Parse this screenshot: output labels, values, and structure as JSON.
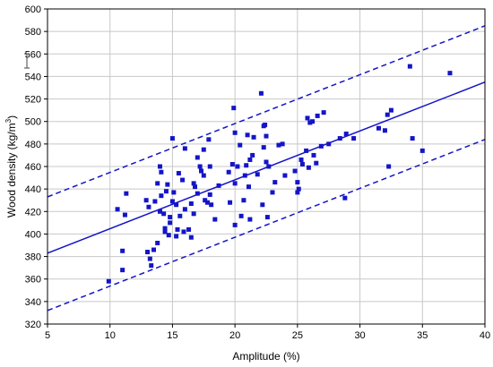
{
  "chart_data": {
    "type": "scatter",
    "xlabel": "Amplitude (%)",
    "ylabel": "Wood density (kg/m",
    "ylabel_sup": "3",
    "ylabel_close": ")",
    "xlim": [
      5,
      40
    ],
    "ylim": [
      320,
      600
    ],
    "xticks": [
      5,
      10,
      15,
      20,
      25,
      30,
      35,
      40
    ],
    "yticks": [
      320,
      340,
      360,
      380,
      400,
      420,
      440,
      460,
      480,
      500,
      520,
      540,
      560,
      580,
      600
    ],
    "grid": true,
    "colors": {
      "points": "#1414c8",
      "lines": "#1414c8",
      "grid": "#c8c8c8"
    },
    "regression_line": {
      "x": [
        5,
        40
      ],
      "y": [
        383,
        535
      ]
    },
    "prediction_upper": {
      "x": [
        5,
        40
      ],
      "y": [
        433,
        585
      ]
    },
    "prediction_lower": {
      "x": [
        5,
        40
      ],
      "y": [
        332,
        484
      ]
    },
    "points": [
      [
        9.9,
        358
      ],
      [
        10.6,
        422
      ],
      [
        11.0,
        385
      ],
      [
        11.0,
        368
      ],
      [
        11.2,
        417
      ],
      [
        11.3,
        436
      ],
      [
        12.9,
        430
      ],
      [
        13.0,
        384
      ],
      [
        13.1,
        424
      ],
      [
        13.2,
        378
      ],
      [
        13.3,
        372
      ],
      [
        13.5,
        386
      ],
      [
        13.6,
        429
      ],
      [
        13.8,
        392
      ],
      [
        13.8,
        445
      ],
      [
        14.0,
        460
      ],
      [
        14.0,
        420
      ],
      [
        14.1,
        434
      ],
      [
        14.1,
        455
      ],
      [
        14.3,
        418
      ],
      [
        14.4,
        405
      ],
      [
        14.4,
        402
      ],
      [
        14.5,
        438
      ],
      [
        14.6,
        444
      ],
      [
        14.7,
        399
      ],
      [
        14.8,
        410
      ],
      [
        14.8,
        415
      ],
      [
        15.0,
        485
      ],
      [
        15.0,
        429
      ],
      [
        15.1,
        437
      ],
      [
        15.3,
        426
      ],
      [
        15.3,
        398
      ],
      [
        15.4,
        404
      ],
      [
        15.5,
        454
      ],
      [
        15.6,
        416
      ],
      [
        15.8,
        448
      ],
      [
        15.9,
        402
      ],
      [
        16.0,
        422
      ],
      [
        16.0,
        476
      ],
      [
        16.3,
        404
      ],
      [
        16.5,
        427
      ],
      [
        16.5,
        397
      ],
      [
        16.7,
        445
      ],
      [
        16.7,
        418
      ],
      [
        16.8,
        442
      ],
      [
        17.0,
        468
      ],
      [
        17.0,
        436
      ],
      [
        17.2,
        460
      ],
      [
        17.3,
        456
      ],
      [
        17.5,
        475
      ],
      [
        17.5,
        452
      ],
      [
        17.6,
        430
      ],
      [
        17.8,
        428
      ],
      [
        17.9,
        484
      ],
      [
        18.0,
        460
      ],
      [
        18.0,
        435
      ],
      [
        18.1,
        426
      ],
      [
        18.4,
        413
      ],
      [
        18.7,
        443
      ],
      [
        19.5,
        455
      ],
      [
        19.6,
        428
      ],
      [
        19.8,
        462
      ],
      [
        19.9,
        512
      ],
      [
        20.0,
        490
      ],
      [
        20.0,
        445
      ],
      [
        20.0,
        408
      ],
      [
        20.2,
        460
      ],
      [
        20.4,
        479
      ],
      [
        20.5,
        416
      ],
      [
        20.7,
        430
      ],
      [
        20.8,
        452
      ],
      [
        20.9,
        461
      ],
      [
        21.0,
        488
      ],
      [
        21.1,
        442
      ],
      [
        21.2,
        413
      ],
      [
        21.2,
        466
      ],
      [
        21.4,
        470
      ],
      [
        21.5,
        486
      ],
      [
        21.8,
        453
      ],
      [
        22.1,
        525
      ],
      [
        22.2,
        426
      ],
      [
        22.3,
        496
      ],
      [
        22.3,
        477
      ],
      [
        22.4,
        497
      ],
      [
        22.5,
        464
      ],
      [
        22.5,
        487
      ],
      [
        22.6,
        415
      ],
      [
        22.7,
        460
      ],
      [
        23.0,
        437
      ],
      [
        23.2,
        446
      ],
      [
        23.5,
        479
      ],
      [
        23.8,
        480
      ],
      [
        24.0,
        452
      ],
      [
        24.8,
        456
      ],
      [
        25.0,
        446
      ],
      [
        25.0,
        437
      ],
      [
        25.1,
        440
      ],
      [
        25.3,
        466
      ],
      [
        25.4,
        462
      ],
      [
        25.7,
        474
      ],
      [
        25.8,
        503
      ],
      [
        25.9,
        459
      ],
      [
        26.0,
        499
      ],
      [
        26.2,
        500
      ],
      [
        26.3,
        470
      ],
      [
        26.5,
        463
      ],
      [
        26.6,
        505
      ],
      [
        26.9,
        478
      ],
      [
        27.1,
        508
      ],
      [
        27.5,
        480
      ],
      [
        28.4,
        485
      ],
      [
        28.8,
        432
      ],
      [
        28.9,
        489
      ],
      [
        29.5,
        485
      ],
      [
        31.5,
        494
      ],
      [
        32.0,
        492
      ],
      [
        32.2,
        506
      ],
      [
        32.3,
        460
      ],
      [
        32.5,
        510
      ],
      [
        34.0,
        549
      ],
      [
        34.2,
        485
      ],
      [
        35.0,
        474
      ],
      [
        37.2,
        543
      ]
    ]
  }
}
